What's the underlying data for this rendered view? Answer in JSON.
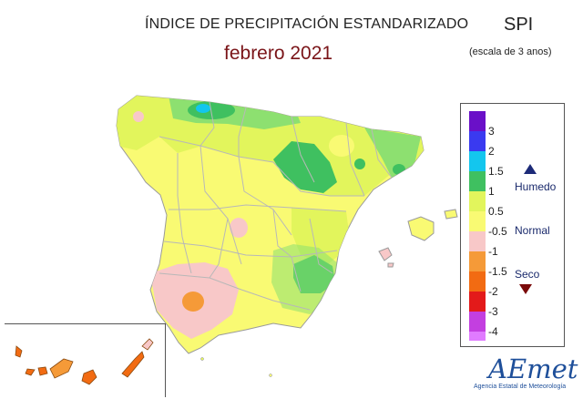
{
  "title": "ÍNDICE DE PRECIPITACIÓN ESTANDARIZADO",
  "period": "febrero 2021",
  "index_name": "SPI",
  "scale_note": "(escala de 3 anos)",
  "legend": {
    "ticks": [
      "3",
      "2",
      "1.5",
      "1",
      "0.5",
      "-0.5",
      "-1",
      "-1.5",
      "-2",
      "-3",
      "-4"
    ],
    "categories": {
      "wet": "Humedo",
      "normal": "Normal",
      "dry": "Seco"
    },
    "colors": [
      "#6a10c8",
      "#3a3af0",
      "#13c6ee",
      "#3fc060",
      "#e2f55c",
      "#f9fa73",
      "#f8c8c8",
      "#f59a38",
      "#f26b12",
      "#e31a1a",
      "#c33fe0",
      "#e07bff"
    ]
  },
  "logo": {
    "text": "AEmet",
    "subtitle": "Agencia Estatal de Meteorología"
  },
  "map_colors": {
    "near_normal": "#f9fa73",
    "moderately_wet": "#e2f55c",
    "wet": "#8de070",
    "very_wet": "#3fc060",
    "extremely_wet": "#13c6ee",
    "dry": "#f8c8c8",
    "very_dry": "#f59a38",
    "border": "#b8b8b8"
  }
}
